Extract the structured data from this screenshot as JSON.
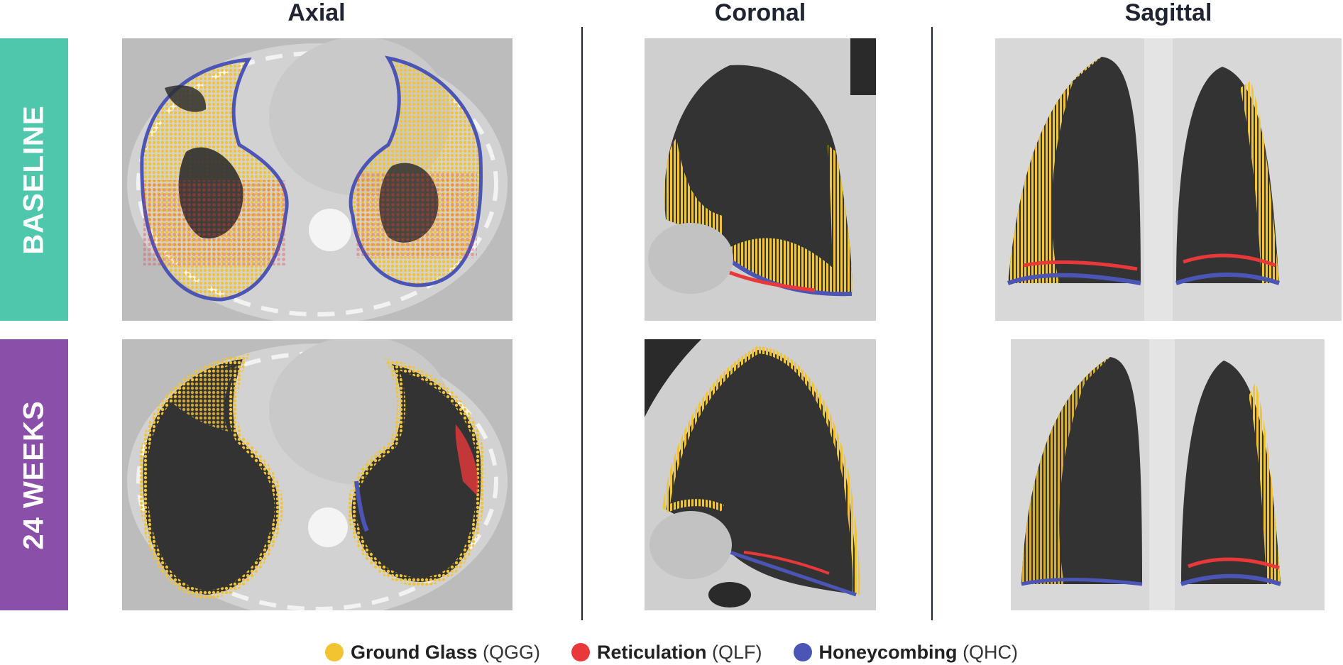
{
  "columns": {
    "axial": "Axial",
    "coronal": "Coronal",
    "sagittal": "Sagittal"
  },
  "rows": {
    "baseline": {
      "label": "BASELINE",
      "color": "#4fc7ad"
    },
    "week24": {
      "label": "24 WEEKS",
      "color": "#8a4fa8"
    }
  },
  "legend": [
    {
      "name": "Ground Glass",
      "abbr": "(QGG)",
      "color": "#f2c431"
    },
    {
      "name": "Reticulation",
      "abbr": "(QLF)",
      "color": "#e8383a"
    },
    {
      "name": "Honeycombing",
      "abbr": "(QHC)",
      "color": "#4b55b6"
    }
  ]
}
